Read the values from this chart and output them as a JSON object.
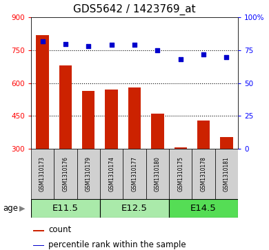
{
  "title": "GDS5642 / 1423769_at",
  "samples": [
    "GSM1310173",
    "GSM1310176",
    "GSM1310179",
    "GSM1310174",
    "GSM1310177",
    "GSM1310180",
    "GSM1310175",
    "GSM1310178",
    "GSM1310181"
  ],
  "counts": [
    820,
    680,
    565,
    570,
    580,
    460,
    305,
    430,
    355
  ],
  "percentiles": [
    82,
    80,
    78,
    79,
    79,
    75,
    68,
    72,
    70
  ],
  "age_groups": [
    {
      "label": "E11.5",
      "start": 0,
      "end": 3
    },
    {
      "label": "E12.5",
      "start": 3,
      "end": 6
    },
    {
      "label": "E14.5",
      "start": 6,
      "end": 9
    }
  ],
  "ylim_left": [
    300,
    900
  ],
  "ylim_right": [
    0,
    100
  ],
  "yticks_left": [
    300,
    450,
    600,
    750,
    900
  ],
  "yticks_right": [
    0,
    25,
    50,
    75,
    100
  ],
  "bar_color": "#cc2200",
  "dot_color": "#0000cc",
  "bar_width": 0.55,
  "age_group_color_light": "#aaeaaa",
  "age_group_color_dark": "#55dd55",
  "sample_box_color": "#d0d0d0",
  "title_fontsize": 11,
  "tick_fontsize": 7.5,
  "sample_fontsize": 5.5,
  "legend_fontsize": 8.5,
  "age_label_fontsize": 9.5,
  "age_label_arrow_fontsize": 8.5
}
